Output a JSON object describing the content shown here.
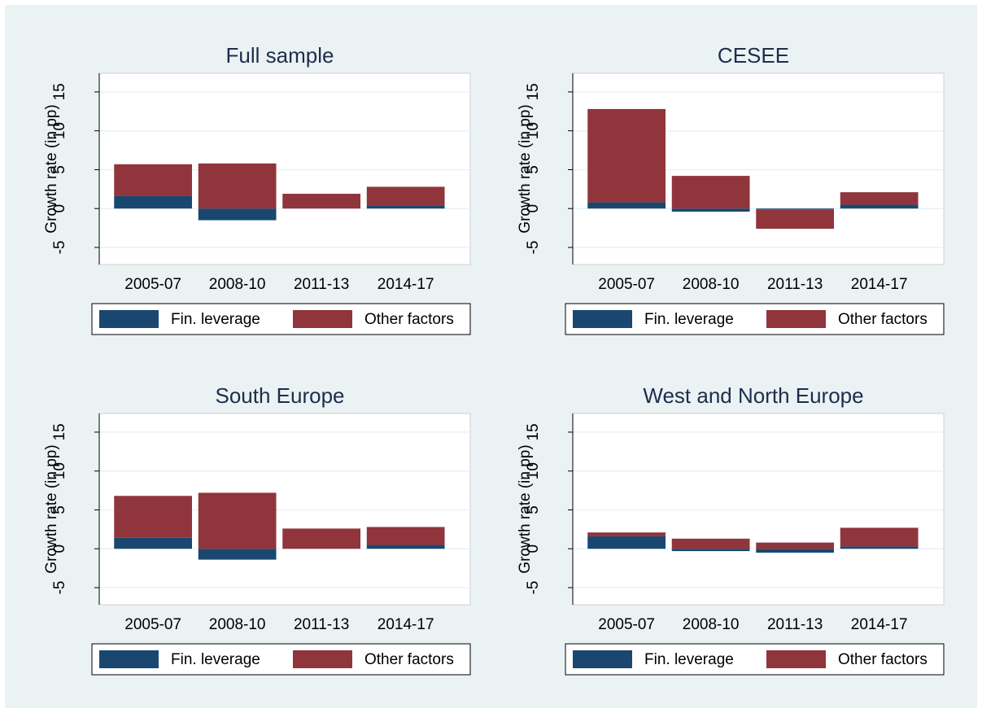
{
  "chart_data": [
    {
      "type": "bar",
      "stacked": true,
      "title": "Full sample",
      "ylabel": "Growth rate (in pp)",
      "categories": [
        "2005-07",
        "2008-10",
        "2011-13",
        "2014-17"
      ],
      "series": [
        {
          "name": "Fin. leverage",
          "color": "#1a476f",
          "values": [
            1.6,
            -1.5,
            0,
            0.4
          ]
        },
        {
          "name": "Other factors",
          "color": "#90353b",
          "values": [
            4.1,
            5.8,
            1.9,
            2.4
          ]
        }
      ],
      "ylim": [
        -7.2,
        17.4
      ],
      "yticks": [
        -5,
        0,
        5,
        10,
        15
      ],
      "grid": true
    },
    {
      "type": "bar",
      "stacked": true,
      "title": "CESEE",
      "ylabel": "Growth rate (in pp)",
      "categories": [
        "2005-07",
        "2008-10",
        "2011-13",
        "2014-17"
      ],
      "series": [
        {
          "name": "Fin. leverage",
          "color": "#1a476f",
          "values": [
            0.8,
            -0.4,
            -0.1,
            0.5
          ]
        },
        {
          "name": "Other factors",
          "color": "#90353b",
          "values": [
            12.0,
            4.2,
            -2.5,
            1.6
          ]
        }
      ],
      "ylim": [
        -7.2,
        17.4
      ],
      "yticks": [
        -5,
        0,
        5,
        10,
        15
      ],
      "grid": true
    },
    {
      "type": "bar",
      "stacked": true,
      "title": "South Europe",
      "ylabel": "Growth rate (in pp)",
      "categories": [
        "2005-07",
        "2008-10",
        "2011-13",
        "2014-17"
      ],
      "series": [
        {
          "name": "Fin. leverage",
          "color": "#1a476f",
          "values": [
            1.4,
            -1.4,
            0,
            0.5
          ]
        },
        {
          "name": "Other factors",
          "color": "#90353b",
          "values": [
            5.4,
            7.2,
            2.6,
            2.3
          ]
        }
      ],
      "ylim": [
        -7.2,
        17.4
      ],
      "yticks": [
        -5,
        0,
        5,
        10,
        15
      ],
      "grid": true
    },
    {
      "type": "bar",
      "stacked": true,
      "title": "West and North Europe",
      "ylabel": "Growth rate (in pp)",
      "categories": [
        "2005-07",
        "2008-10",
        "2011-13",
        "2014-17"
      ],
      "series": [
        {
          "name": "Fin. leverage",
          "color": "#1a476f",
          "values": [
            1.6,
            -0.3,
            -0.5,
            0.3
          ]
        },
        {
          "name": "Other factors",
          "color": "#90353b",
          "values": [
            0.5,
            1.3,
            0.8,
            2.4
          ]
        }
      ],
      "ylim": [
        -7.2,
        17.4
      ],
      "yticks": [
        -5,
        0,
        5,
        10,
        15
      ],
      "grid": true
    }
  ]
}
